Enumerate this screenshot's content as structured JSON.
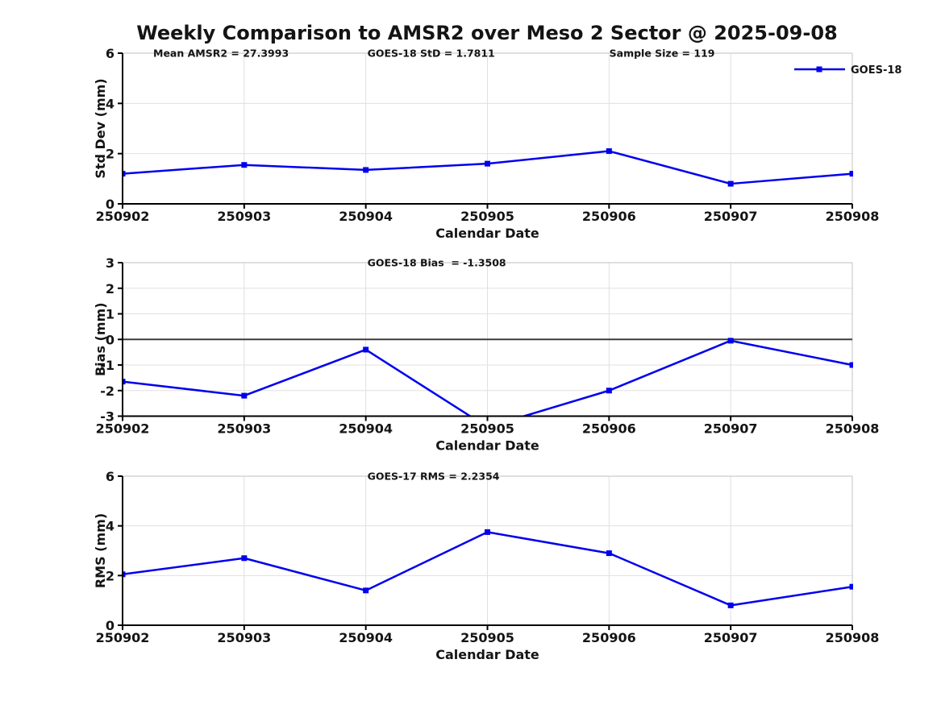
{
  "title": "Weekly Comparison to AMSR2 over Meso 2 Sector @ 2025-09-08",
  "legend": {
    "label": "GOES-18",
    "color": "#0000ee"
  },
  "colors": {
    "series": "#0000ee",
    "axis": "#000000",
    "grid": "#e0e0e0",
    "frame": "#cccccc",
    "zero_line": "#3c3c3c",
    "text": "#141414"
  },
  "chart_data": [
    {
      "type": "line",
      "name": "std-dev",
      "categories": [
        "250902",
        "250903",
        "250904",
        "250905",
        "250906",
        "250907",
        "250908"
      ],
      "series": [
        {
          "name": "GOES-18",
          "values": [
            1.2,
            1.55,
            1.35,
            1.6,
            2.1,
            0.8,
            1.2
          ]
        }
      ],
      "xlabel": "Calendar Date",
      "ylabel": "Std Dev (mm)",
      "ylim": [
        0,
        6
      ],
      "yticks": [
        0,
        2,
        4,
        6
      ],
      "grid": true,
      "zero_line": false,
      "legend_position": "top-right",
      "annotations": [
        {
          "text": "Mean AMSR2 = 27.3993",
          "xfrac": 0.042
        },
        {
          "text": "GOES-18 StD = 1.7811",
          "xfrac": 0.3355
        },
        {
          "text": "Sample Size = 119",
          "xfrac": 0.667
        }
      ]
    },
    {
      "type": "line",
      "name": "bias",
      "categories": [
        "250902",
        "250903",
        "250904",
        "250905",
        "250906",
        "250907",
        "250908"
      ],
      "series": [
        {
          "name": "GOES-18",
          "values": [
            -1.65,
            -2.2,
            -0.4,
            -3.43,
            -2.0,
            -0.05,
            -1.0
          ]
        }
      ],
      "xlabel": "Calendar Date",
      "ylabel": "Bias (mm)",
      "ylim": [
        -3,
        3
      ],
      "yticks": [
        -3,
        -2,
        -1,
        0,
        1,
        2,
        3
      ],
      "grid": true,
      "zero_line": true,
      "legend_position": "none",
      "annotations": [
        {
          "text": "GOES-18 Bias  = -1.3508",
          "xfrac": 0.3355
        }
      ]
    },
    {
      "type": "line",
      "name": "rms",
      "categories": [
        "250902",
        "250903",
        "250904",
        "250905",
        "250906",
        "250907",
        "250908"
      ],
      "series": [
        {
          "name": "GOES-18",
          "values": [
            2.05,
            2.7,
            1.4,
            3.75,
            2.9,
            0.8,
            1.55
          ]
        }
      ],
      "xlabel": "Calendar Date",
      "ylabel": "RMS (mm)",
      "ylim": [
        0,
        6
      ],
      "yticks": [
        0,
        2,
        4,
        6
      ],
      "grid": true,
      "zero_line": false,
      "legend_position": "none",
      "annotations": [
        {
          "text": "GOES-17 RMS = 2.2354",
          "xfrac": 0.3355
        }
      ]
    }
  ]
}
